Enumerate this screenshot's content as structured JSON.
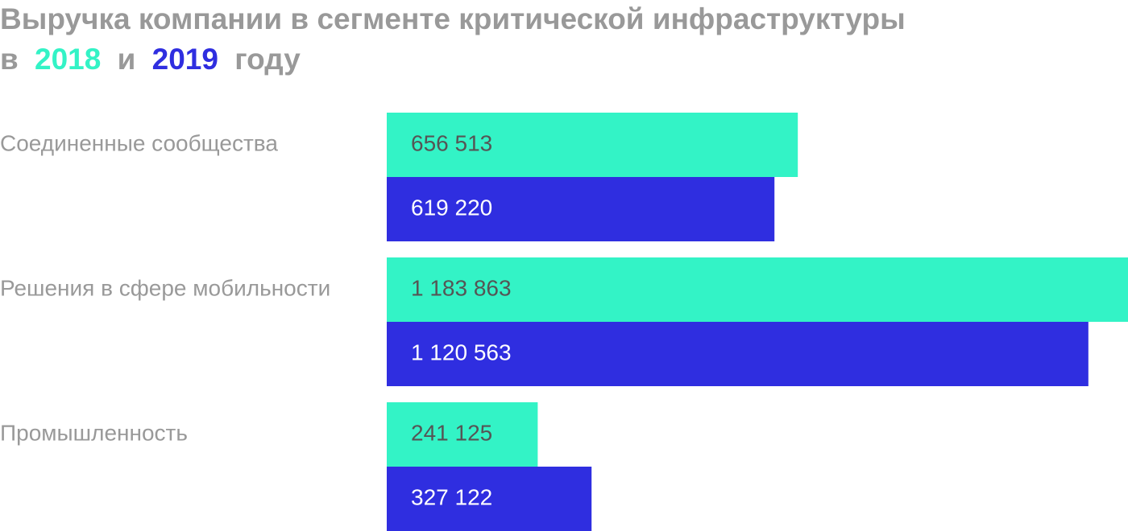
{
  "chart_data": {
    "type": "hbar",
    "title": [
      "Выручка компании в сегменте критической инфраструктуры",
      "в",
      "и",
      "году"
    ],
    "categories": [
      "Соединенные сообщества",
      "Решения в сфере мобильности",
      "Промышленность"
    ],
    "series": [
      {
        "name": "2018",
        "color": "#33f3c6",
        "values": [
          656513,
          1183863,
          241125
        ],
        "value_labels": [
          "656 513",
          "1 183 863",
          "241 125"
        ]
      },
      {
        "name": "2019",
        "color": "#2f2ee0",
        "values": [
          619220,
          1120563,
          327122
        ],
        "value_labels": [
          "619 220",
          "1 120 563",
          "327 122"
        ]
      }
    ],
    "xlim": [
      0,
      1183863
    ]
  }
}
